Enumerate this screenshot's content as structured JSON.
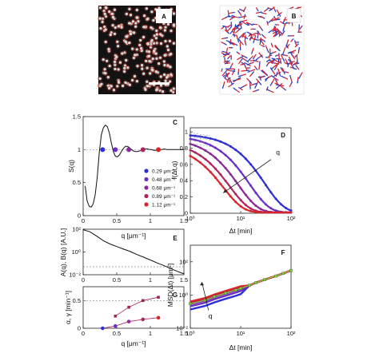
{
  "figure": {
    "panel_letters": [
      "A",
      "B",
      "C",
      "D",
      "E",
      "F",
      "G"
    ]
  },
  "chart_data": [
    {
      "panel": "A",
      "type": "image",
      "description_colors": {
        "background": "#121212",
        "particle": "#d8d8d8",
        "ring": "#c0392b"
      }
    },
    {
      "panel": "B",
      "type": "image",
      "description_colors": {
        "background": "#ffffff",
        "track_a": "#d1283a",
        "track_b": "#2a3fbf"
      }
    },
    {
      "panel": "C",
      "type": "line",
      "xlabel": "q [μm⁻¹]",
      "ylabel": "S(q)",
      "xlim": [
        0,
        1.5
      ],
      "ylim": [
        0,
        1.5
      ],
      "xticks": [
        "0",
        "0.5",
        "1",
        "1.5"
      ],
      "yticks": [
        "0",
        "0.5",
        "1",
        "1.5"
      ],
      "curve": {
        "q": [
          0.03,
          0.06,
          0.09,
          0.12,
          0.15,
          0.18,
          0.21,
          0.24,
          0.27,
          0.3,
          0.33,
          0.36,
          0.39,
          0.42,
          0.45,
          0.48,
          0.51,
          0.54,
          0.57,
          0.6,
          0.63,
          0.66,
          0.69,
          0.72,
          0.75,
          0.78,
          0.81,
          0.84,
          0.87,
          0.9,
          0.93,
          0.96,
          0.99,
          1.02,
          1.05,
          1.08,
          1.11,
          1.14,
          1.17,
          1.2,
          1.25,
          1.3,
          1.35,
          1.4,
          1.45,
          1.5
        ],
        "S": [
          0.45,
          0.22,
          0.14,
          0.13,
          0.18,
          0.32,
          0.58,
          0.96,
          1.22,
          1.33,
          1.37,
          1.35,
          1.25,
          1.1,
          0.97,
          0.9,
          0.89,
          0.92,
          0.97,
          1.02,
          1.05,
          1.05,
          1.03,
          1.0,
          0.98,
          0.97,
          0.97,
          0.98,
          0.99,
          1.0,
          1.01,
          1.01,
          1.0,
          1.0,
          0.99,
          0.99,
          1.0,
          1.0,
          1.0,
          1.01,
          1.0,
          1.0,
          1.0,
          1.0,
          1.0,
          1.0
        ]
      },
      "reference_line": 1,
      "markers": [
        {
          "name": "0.29 μm⁻¹",
          "q": 0.29,
          "S": 1.0,
          "color": "#2d2fd6"
        },
        {
          "name": "0.48 μm⁻¹",
          "q": 0.48,
          "S": 1.0,
          "color": "#6a2fc4"
        },
        {
          "name": "0.68 μm⁻¹",
          "q": 0.68,
          "S": 1.0,
          "color": "#8b2a9a"
        },
        {
          "name": "0.89 μm⁻¹",
          "q": 0.89,
          "S": 1.0,
          "color": "#b0245e"
        },
        {
          "name": "1.12 μm⁻¹",
          "q": 1.12,
          "S": 1.0,
          "color": "#d7262b"
        }
      ],
      "legend_position": "bottom-right"
    },
    {
      "panel": "D",
      "type": "line",
      "xscale": "log",
      "xlabel": "Δt [min]",
      "ylabel": "f(Δt,q)",
      "xlim": [
        1,
        100
      ],
      "ylim": [
        0,
        1.05
      ],
      "xticks": [
        "10⁰",
        "10¹",
        "10²"
      ],
      "yticks": [
        "0",
        "0.2",
        "0.4",
        "0.6",
        "0.8",
        "1"
      ],
      "annotation_arrow_label": "q",
      "series": [
        {
          "color": "#2d2fd6",
          "tau": 30,
          "plateau": 0.97
        },
        {
          "color": "#6a2fc4",
          "tau": 15,
          "plateau": 0.95
        },
        {
          "color": "#8b2a9a",
          "tau": 9,
          "plateau": 0.92
        },
        {
          "color": "#b0245e",
          "tau": 6,
          "plateau": 0.88
        },
        {
          "color": "#d7262b",
          "tau": 4.5,
          "plateau": 0.84
        }
      ]
    },
    {
      "panel": "E",
      "type": "line",
      "yscale": "log",
      "xlabel": "",
      "ylabel": "A(q), B(q) [A.U.]",
      "xlim": [
        0,
        1.5
      ],
      "ylim": [
        0.01,
        100
      ],
      "xticks": [
        "0",
        "0.5",
        "1",
        "1.5"
      ],
      "yticks": [
        "10⁻²",
        "10⁰",
        "10²"
      ],
      "A_curve": {
        "q": [
          0.0,
          0.1,
          0.2,
          0.3,
          0.4,
          0.5,
          0.6,
          0.7,
          0.8,
          0.9,
          1.0,
          1.1,
          1.2,
          1.3,
          1.4,
          1.5
        ],
        "A": [
          90,
          60,
          25,
          10,
          5,
          3,
          1.8,
          1.1,
          0.6,
          0.35,
          0.2,
          0.11,
          0.065,
          0.035,
          0.02,
          0.012
        ]
      },
      "B_level": 0.05
    },
    {
      "panel": "F",
      "type": "line",
      "xscale": "log",
      "yscale": "log",
      "xlabel": "Δt [min]",
      "ylabel": "MSD(Δt) [μm²]",
      "xlim": [
        1,
        100
      ],
      "ylim": [
        0.01,
        1000
      ],
      "xticks": [
        "10⁰",
        "10¹",
        "10²"
      ],
      "yticks": [
        "10⁻²",
        "10⁰",
        "10²"
      ],
      "annotation_arrow_label": "q",
      "msd": {
        "dt": [
          1,
          2,
          3,
          5,
          8,
          10,
          15,
          20,
          30,
          50,
          70,
          100
        ],
        "values": [
          0.3,
          0.5,
          0.8,
          1.3,
          2.0,
          2.5,
          3.8,
          5.5,
          8.5,
          14,
          20,
          30
        ]
      },
      "series_colors": [
        "#2d2fd6",
        "#6a2fc4",
        "#8b2a9a",
        "#b0245e",
        "#d7262b",
        "#7ad83a"
      ]
    },
    {
      "panel": "G",
      "type": "line",
      "xlabel": "q [μm⁻¹]",
      "ylabel": "α, γ [min⁻¹]",
      "xlim": [
        0,
        1.5
      ],
      "ylim": [
        0,
        0.75
      ],
      "xticks": [
        "0",
        "0.5",
        "1",
        "1.5"
      ],
      "yticks": [
        "0",
        "0.5"
      ],
      "reference_line": 0.5,
      "alpha": {
        "q": [
          0.29,
          0.48,
          0.68,
          0.89,
          1.12
        ],
        "values": [
          0.0,
          0.04,
          0.12,
          0.16,
          0.19
        ]
      },
      "gamma": {
        "q": [
          0.48,
          0.68,
          0.89,
          1.12
        ],
        "values": [
          0.22,
          0.38,
          0.5,
          0.56
        ]
      },
      "alpha_colors": [
        "#2d2fd6",
        "#6a2fc4",
        "#8b2a9a",
        "#b0245e",
        "#d7262b"
      ],
      "gamma_color": "#a0245a"
    }
  ]
}
